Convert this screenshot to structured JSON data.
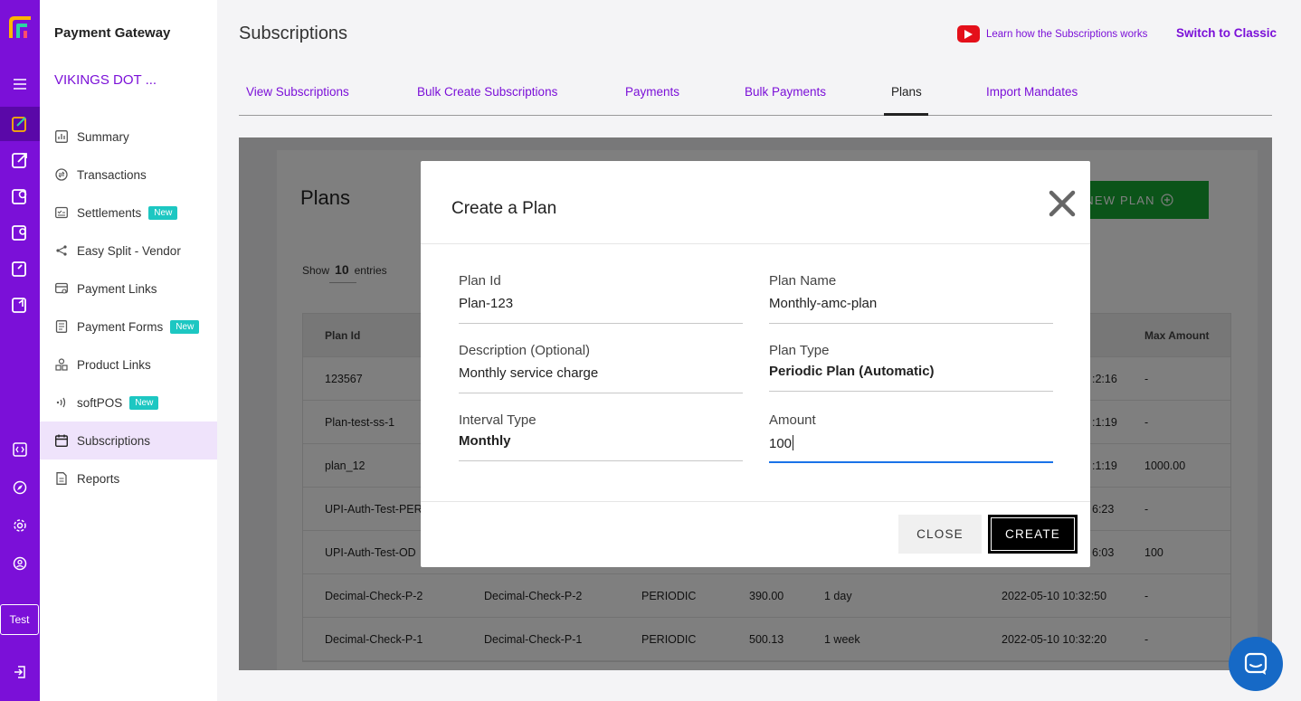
{
  "sidebar": {
    "title": "Payment Gateway",
    "merchant": "VIKINGS DOT ...",
    "items": [
      {
        "label": "Summary",
        "icon": "bar-chart-icon"
      },
      {
        "label": "Transactions",
        "icon": "transactions-icon"
      },
      {
        "label": "Settlements",
        "icon": "settlements-icon",
        "badge": "New"
      },
      {
        "label": "Easy Split - Vendor",
        "icon": "split-icon"
      },
      {
        "label": "Payment Links",
        "icon": "payment-link-icon"
      },
      {
        "label": "Payment Forms",
        "icon": "form-icon",
        "badge": "New"
      },
      {
        "label": "Product Links",
        "icon": "product-icon"
      },
      {
        "label": "softPOS",
        "icon": "nfc-icon",
        "badge": "New"
      },
      {
        "label": "Subscriptions",
        "icon": "calendar-icon",
        "active": true
      },
      {
        "label": "Reports",
        "icon": "document-icon"
      }
    ]
  },
  "rail": {
    "env_label": "Test"
  },
  "header": {
    "title": "Subscriptions",
    "learn_link": "Learn how the Subscriptions works",
    "switch_link": "Switch to Classic"
  },
  "tabs": [
    {
      "label": "View Subscriptions"
    },
    {
      "label": "Bulk Create Subscriptions"
    },
    {
      "label": "Payments"
    },
    {
      "label": "Bulk Payments"
    },
    {
      "label": "Plans",
      "active": true
    },
    {
      "label": "Import Mandates"
    }
  ],
  "plans_page": {
    "heading": "Plans",
    "new_plan_label": "NEW PLAN",
    "show_label": "Show",
    "show_count": "10",
    "entries_label": "entries",
    "columns": {
      "plan_id": "Plan Id",
      "max_amount": "Max Amount"
    },
    "rows": [
      {
        "plan_id": "123567",
        "plan_name": "",
        "type": "",
        "amount": "",
        "interval": "",
        "created": ":2:16",
        "max_amount": "-"
      },
      {
        "plan_id": "Plan-test-ss-1",
        "plan_name": "",
        "type": "",
        "amount": "",
        "interval": "",
        "created": ":1:19",
        "max_amount": "-"
      },
      {
        "plan_id": "plan_12",
        "plan_name": "",
        "type": "",
        "amount": "",
        "interval": "",
        "created": ":1:19",
        "max_amount": "1000.00"
      },
      {
        "plan_id": "UPI-Auth-Test-PER",
        "plan_name": "",
        "type": "",
        "amount": "",
        "interval": "",
        "created": "6:23",
        "max_amount": "-"
      },
      {
        "plan_id": "UPI-Auth-Test-OD",
        "plan_name": "",
        "type": "",
        "amount": "",
        "interval": "",
        "created": "6:03",
        "max_amount": "100"
      },
      {
        "plan_id": "Decimal-Check-P-2",
        "plan_name": "Decimal-Check-P-2",
        "type": "PERIODIC",
        "amount": "390.00",
        "interval": "1 day",
        "created": "2022-05-10 10:32:50",
        "max_amount": "-"
      },
      {
        "plan_id": "Decimal-Check-P-1",
        "plan_name": "Decimal-Check-P-1",
        "type": "PERIODIC",
        "amount": "500.13",
        "interval": "1 week",
        "created": "2022-05-10 10:32:20",
        "max_amount": "-"
      }
    ]
  },
  "modal": {
    "title": "Create a Plan",
    "fields": {
      "plan_id": {
        "label": "Plan Id",
        "value": "Plan-123"
      },
      "plan_name": {
        "label": "Plan Name",
        "value": "Monthly-amc-plan"
      },
      "description": {
        "label": "Description (Optional)",
        "value": "Monthly service charge"
      },
      "plan_type": {
        "label": "Plan Type",
        "value": "Periodic Plan (Automatic)"
      },
      "interval_type": {
        "label": "Interval Type",
        "value": "Monthly"
      },
      "amount": {
        "label": "Amount",
        "value": "100"
      }
    },
    "close_label": "CLOSE",
    "create_label": "CREATE"
  },
  "colors": {
    "brand": "#7b10d8",
    "accent_green": "#16a832",
    "badge": "#1dc7c2",
    "focus": "#1a73e8"
  }
}
